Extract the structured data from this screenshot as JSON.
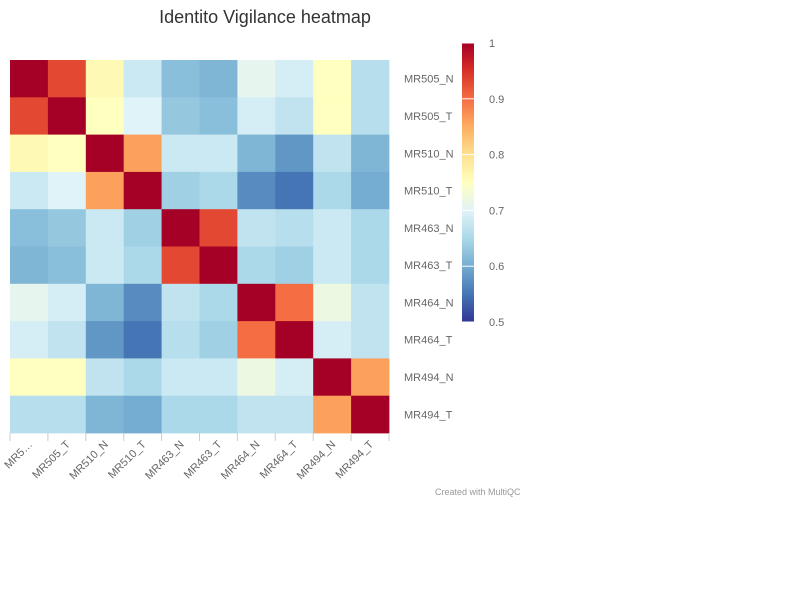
{
  "chart_data": {
    "type": "heatmap",
    "title": "Identito Vigilance heatmap",
    "xlabel": "",
    "ylabel": "",
    "x_labels": [
      "MR5…",
      "MR505_T",
      "MR510_N",
      "MR510_T",
      "MR463_N",
      "MR463_T",
      "MR464_N",
      "MR464_T",
      "MR494_N",
      "MR494_T"
    ],
    "y_labels": [
      "MR505_N",
      "MR505_T",
      "MR510_N",
      "MR510_T",
      "MR463_N",
      "MR463_T",
      "MR464_N",
      "MR464_T",
      "MR494_N",
      "MR494_T"
    ],
    "values": [
      [
        1.0,
        0.93,
        0.76,
        0.68,
        0.62,
        0.61,
        0.71,
        0.69,
        0.75,
        0.66
      ],
      [
        0.93,
        1.0,
        0.75,
        0.7,
        0.63,
        0.62,
        0.69,
        0.67,
        0.75,
        0.66
      ],
      [
        0.76,
        0.75,
        1.0,
        0.86,
        0.68,
        0.68,
        0.61,
        0.58,
        0.67,
        0.61
      ],
      [
        0.68,
        0.7,
        0.86,
        1.0,
        0.64,
        0.65,
        0.57,
        0.55,
        0.65,
        0.6
      ],
      [
        0.62,
        0.63,
        0.68,
        0.64,
        1.0,
        0.93,
        0.67,
        0.66,
        0.68,
        0.65
      ],
      [
        0.61,
        0.62,
        0.68,
        0.65,
        0.93,
        1.0,
        0.65,
        0.64,
        0.68,
        0.65
      ],
      [
        0.71,
        0.69,
        0.61,
        0.57,
        0.67,
        0.65,
        1.0,
        0.9,
        0.72,
        0.67
      ],
      [
        0.69,
        0.67,
        0.58,
        0.55,
        0.66,
        0.64,
        0.9,
        1.0,
        0.69,
        0.67
      ],
      [
        0.75,
        0.75,
        0.67,
        0.65,
        0.68,
        0.68,
        0.72,
        0.69,
        1.0,
        0.86
      ],
      [
        0.66,
        0.66,
        0.61,
        0.6,
        0.65,
        0.65,
        0.67,
        0.67,
        0.86,
        1.0
      ]
    ],
    "colorbar": {
      "min": 0.5,
      "max": 1,
      "ticks": [
        "1",
        "0.9",
        "0.8",
        "0.7",
        "0.6",
        "0.5"
      ]
    },
    "colorscale": [
      "#313695",
      "#4575b4",
      "#74add1",
      "#abd9e9",
      "#e0f3f8",
      "#ffffbf",
      "#fee090",
      "#fdae61",
      "#f46d43",
      "#d73027",
      "#a50026"
    ],
    "grid": false,
    "legend": "right"
  },
  "credit": "Created with MultiQC"
}
